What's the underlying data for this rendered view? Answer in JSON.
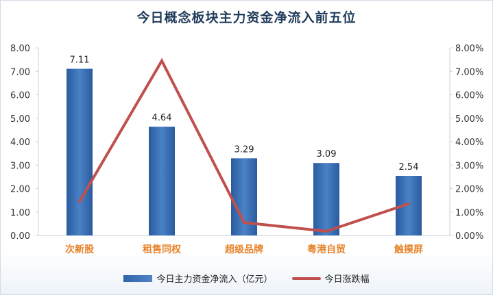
{
  "chart_data": {
    "type": "bar",
    "title": "今日概念板块主力资金净流入前五位",
    "categories": [
      "次新股",
      "租售同权",
      "超级品牌",
      "粤港自贸",
      "触摸屏"
    ],
    "series": [
      {
        "name": "今日主力资金净流入（亿元）",
        "type": "bar",
        "axis": "left",
        "values": [
          7.11,
          4.64,
          3.29,
          3.09,
          2.54
        ],
        "data_labels": [
          "7.11",
          "4.64",
          "3.29",
          "3.09",
          "2.54"
        ],
        "color": "#3a6fb5"
      },
      {
        "name": "今日涨跌幅",
        "type": "line",
        "axis": "right",
        "values": [
          1.45,
          7.45,
          0.55,
          0.18,
          1.35
        ],
        "color": "#c0504d"
      }
    ],
    "y_left": {
      "min": 0,
      "max": 8,
      "ticks": [
        "0.00",
        "1.00",
        "2.00",
        "3.00",
        "4.00",
        "5.00",
        "6.00",
        "7.00",
        "8.00"
      ]
    },
    "y_right": {
      "min": 0,
      "max": 8,
      "unit": "%",
      "ticks": [
        "0.00%",
        "1.00%",
        "2.00%",
        "3.00%",
        "4.00%",
        "5.00%",
        "6.00%",
        "7.00%",
        "8.00%"
      ]
    },
    "grid": false,
    "legend": "bottom"
  }
}
